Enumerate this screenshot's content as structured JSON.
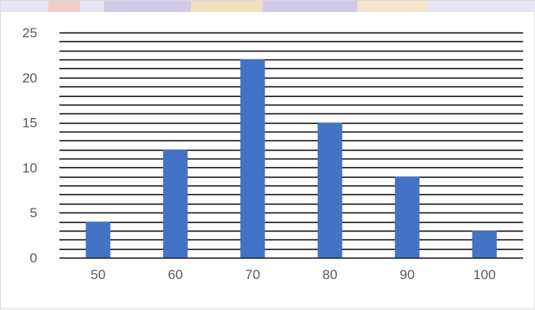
{
  "colors": {
    "bar": "#4472c4",
    "gridline": "#000000",
    "tick_text": "#595959",
    "frame": "#d9d9d9"
  },
  "chart_data": {
    "type": "bar",
    "title": "",
    "xlabel": "",
    "ylabel": "",
    "categories": [
      "50",
      "60",
      "70",
      "80",
      "90",
      "100"
    ],
    "values": [
      4,
      12,
      22,
      15,
      9,
      3
    ],
    "ylim": [
      0,
      25
    ],
    "yticks": [
      "0",
      "5",
      "10",
      "15",
      "20",
      "25"
    ],
    "grid": true,
    "grid_step": 1,
    "legend": "none"
  }
}
